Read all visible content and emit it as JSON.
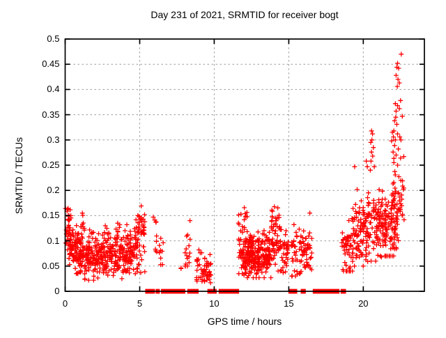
{
  "chart_data": {
    "type": "scatter",
    "title": "Day 231 of 2021, SRMTID for receiver bogt",
    "xlabel": "GPS time / hours",
    "ylabel": "SRMTID / TECUs",
    "xlim": [
      0,
      24.1
    ],
    "ylim": [
      0,
      0.5
    ],
    "xticks": {
      "values": [
        0,
        5,
        10,
        15,
        20
      ],
      "labels": [
        "0",
        "5",
        "10",
        "15",
        "20"
      ]
    },
    "yticks": {
      "values": [
        0,
        0.05,
        0.1,
        0.15,
        0.2,
        0.25,
        0.3,
        0.35,
        0.4,
        0.45,
        0.5
      ],
      "labels": [
        "0",
        "0.05",
        "0.1",
        "0.15",
        "0.2",
        "0.25",
        "0.3",
        "0.35",
        "0.4",
        "0.45",
        "0.5"
      ]
    },
    "grid": true,
    "legend": "none",
    "marker": "plus",
    "marker_color": "#ff0000",
    "grid_color": "#9b9b9b",
    "border_color": "#000000",
    "seed": 11,
    "cluster_fields": [
      "t_start_h",
      "t_end_h",
      "n_points",
      "mean_start_tecu",
      "mean_end_tecu",
      "sd_tecu",
      "min_tecu",
      "max_tecu"
    ],
    "clusters": [
      [
        0.02,
        0.4,
        35,
        0.125,
        0.115,
        0.032,
        0.065,
        0.196
      ],
      [
        0.25,
        1.05,
        90,
        0.095,
        0.07,
        0.022,
        0.035,
        0.155
      ],
      [
        1.0,
        4.55,
        330,
        0.068,
        0.072,
        0.021,
        0.022,
        0.132
      ],
      [
        1.05,
        1.3,
        10,
        0.125,
        0.125,
        0.02,
        0.09,
        0.155
      ],
      [
        2.6,
        2.95,
        8,
        0.115,
        0.115,
        0.012,
        0.095,
        0.13
      ],
      [
        3.35,
        3.65,
        8,
        0.115,
        0.115,
        0.012,
        0.095,
        0.135
      ],
      [
        4.55,
        5.35,
        70,
        0.09,
        0.12,
        0.032,
        0.035,
        0.19
      ],
      [
        5.9,
        6.15,
        9,
        0.115,
        0.115,
        0.028,
        0.075,
        0.16
      ],
      [
        6.3,
        6.65,
        9,
        0.07,
        0.07,
        0.022,
        0.035,
        0.105
      ],
      [
        7.7,
        7.8,
        2,
        0.045,
        0.045,
        0.004,
        0.04,
        0.05
      ],
      [
        7.95,
        8.4,
        16,
        0.095,
        0.095,
        0.027,
        0.05,
        0.14
      ],
      [
        8.78,
        9.8,
        55,
        0.048,
        0.04,
        0.016,
        0.008,
        0.085
      ],
      [
        11.62,
        11.95,
        28,
        0.09,
        0.09,
        0.033,
        0.035,
        0.17
      ],
      [
        11.9,
        13.8,
        250,
        0.072,
        0.072,
        0.021,
        0.027,
        0.13
      ],
      [
        12.0,
        12.25,
        10,
        0.14,
        0.14,
        0.018,
        0.11,
        0.175
      ],
      [
        13.8,
        14.55,
        65,
        0.105,
        0.105,
        0.032,
        0.04,
        0.178
      ],
      [
        14.55,
        15.0,
        30,
        0.075,
        0.075,
        0.022,
        0.028,
        0.12
      ],
      [
        15.15,
        15.6,
        26,
        0.075,
        0.075,
        0.028,
        0.03,
        0.133
      ],
      [
        15.7,
        16.55,
        55,
        0.08,
        0.08,
        0.03,
        0.02,
        0.155
      ],
      [
        18.55,
        19.35,
        55,
        0.085,
        0.085,
        0.03,
        0.04,
        0.165
      ],
      [
        19.3,
        20.3,
        90,
        0.105,
        0.125,
        0.033,
        0.05,
        0.225
      ],
      [
        20.3,
        21.35,
        95,
        0.13,
        0.13,
        0.035,
        0.06,
        0.24
      ],
      [
        21.35,
        22.3,
        85,
        0.125,
        0.125,
        0.033,
        0.07,
        0.225
      ],
      [
        21.9,
        22.75,
        55,
        0.15,
        0.19,
        0.045,
        0.08,
        0.3
      ]
    ],
    "extra_points": [
      [
        19.42,
        0.247
      ],
      [
        20.2,
        0.258
      ],
      [
        20.27,
        0.247
      ],
      [
        20.5,
        0.295
      ],
      [
        20.55,
        0.318
      ],
      [
        20.62,
        0.312
      ],
      [
        20.58,
        0.3
      ],
      [
        20.68,
        0.285
      ],
      [
        20.55,
        0.276
      ],
      [
        20.63,
        0.268
      ],
      [
        20.52,
        0.258
      ],
      [
        20.74,
        0.247
      ],
      [
        20.47,
        0.24
      ],
      [
        21.9,
        0.298
      ],
      [
        21.95,
        0.315
      ],
      [
        22.02,
        0.306
      ],
      [
        22.05,
        0.255
      ],
      [
        22.3,
        0.25
      ],
      [
        22.5,
        0.264
      ],
      [
        22.2,
        0.27
      ],
      [
        22.0,
        0.276
      ],
      [
        22.35,
        0.282
      ],
      [
        22.1,
        0.289
      ],
      [
        22.15,
        0.3
      ],
      [
        22.3,
        0.312
      ],
      [
        22.45,
        0.306
      ],
      [
        22.05,
        0.318
      ],
      [
        22.25,
        0.331
      ],
      [
        22.1,
        0.338
      ],
      [
        22.18,
        0.345
      ],
      [
        22.62,
        0.347
      ],
      [
        22.2,
        0.357
      ],
      [
        22.42,
        0.362
      ],
      [
        22.3,
        0.368
      ],
      [
        22.15,
        0.372
      ],
      [
        22.5,
        0.378
      ],
      [
        22.28,
        0.406
      ],
      [
        22.42,
        0.413
      ],
      [
        22.33,
        0.42
      ],
      [
        22.2,
        0.428
      ],
      [
        22.37,
        0.442
      ],
      [
        22.25,
        0.444
      ],
      [
        22.3,
        0.452
      ],
      [
        22.55,
        0.47
      ]
    ],
    "zero_value_runs_hours": [
      [
        5.37,
        6.02
      ],
      [
        6.07,
        6.35
      ],
      [
        6.43,
        8.06
      ],
      [
        8.19,
        8.95
      ],
      [
        9.54,
        10.16
      ],
      [
        10.3,
        11.67
      ],
      [
        14.98,
        15.57
      ],
      [
        15.8,
        16.14
      ],
      [
        16.61,
        18.4
      ],
      [
        18.48,
        18.84
      ]
    ]
  }
}
